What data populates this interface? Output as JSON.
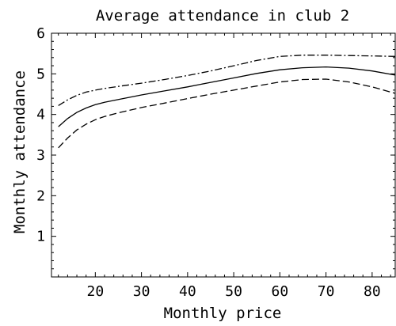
{
  "chart_data": {
    "type": "line",
    "title": "Average attendance in club 2",
    "xlabel": "Monthly price",
    "ylabel": "Monthly attendance",
    "xlim": [
      10.5,
      85
    ],
    "ylim": [
      0,
      6
    ],
    "xticks": [
      20,
      30,
      40,
      50,
      60,
      70,
      80
    ],
    "yticks": [
      1,
      2,
      3,
      4,
      5,
      6
    ],
    "grid": false,
    "x": [
      12,
      14,
      16,
      18,
      20,
      22,
      25,
      30,
      35,
      40,
      45,
      50,
      55,
      60,
      65,
      70,
      75,
      80,
      85
    ],
    "series": [
      {
        "style": "dash-dot",
        "values": [
          4.22,
          4.36,
          4.47,
          4.55,
          4.6,
          4.64,
          4.69,
          4.77,
          4.86,
          4.96,
          5.07,
          5.2,
          5.33,
          5.43,
          5.46,
          5.46,
          5.45,
          5.44,
          5.43
        ]
      },
      {
        "style": "solid",
        "values": [
          3.7,
          3.9,
          4.05,
          4.16,
          4.24,
          4.3,
          4.37,
          4.48,
          4.58,
          4.68,
          4.79,
          4.9,
          5.01,
          5.1,
          5.15,
          5.17,
          5.14,
          5.07,
          4.97
        ]
      },
      {
        "style": "dashed",
        "values": [
          3.18,
          3.42,
          3.62,
          3.76,
          3.87,
          3.95,
          4.04,
          4.17,
          4.28,
          4.39,
          4.5,
          4.6,
          4.7,
          4.8,
          4.86,
          4.87,
          4.8,
          4.68,
          4.52
        ]
      }
    ]
  }
}
